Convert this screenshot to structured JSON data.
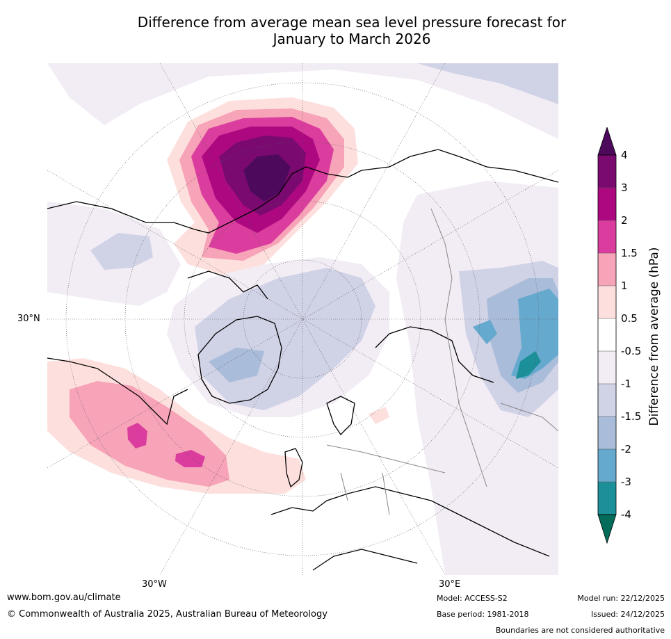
{
  "title_line1": "Difference from average mean sea level pressure forecast for",
  "title_line2": "January to March 2026",
  "map": {
    "lat_label": "30°N",
    "lon_label_west": "30°W",
    "lon_label_east": "30°E"
  },
  "colorbar": {
    "label": "Difference from average (hPa)",
    "ticks": [
      "4",
      "3",
      "2",
      "1.5",
      "1",
      "0.5",
      "-0.5",
      "-1",
      "-1.5",
      "-2",
      "-3",
      "-4"
    ],
    "colors": {
      "over": "#4d0a5c",
      "3_4": "#7a0a70",
      "2_3": "#ad0880",
      "1.5_2": "#db3d9e",
      "1_1.5": "#f7a3b8",
      "0.5_1": "#fde0de",
      "neutral": "#ffffff",
      "m1_m0.5": "#f2ecf5",
      "m1.5_m1": "#d0d2e6",
      "m2_m1.5": "#a9bcd9",
      "m3_m2": "#66a9cf",
      "m4_m3": "#1c9099",
      "under": "#016c59"
    }
  },
  "footer": {
    "website": "www.bom.gov.au/climate",
    "copyright": "© Commonwealth of Australia 2025, Australian Bureau of Meteorology",
    "model": "Model: ACCESS-S2",
    "base_period": "Base period: 1981-2018",
    "model_run": "Model run: 22/12/2025",
    "issued": "Issued: 24/12/2025",
    "disclaimer": "Boundaries are not considered authoritative"
  }
}
